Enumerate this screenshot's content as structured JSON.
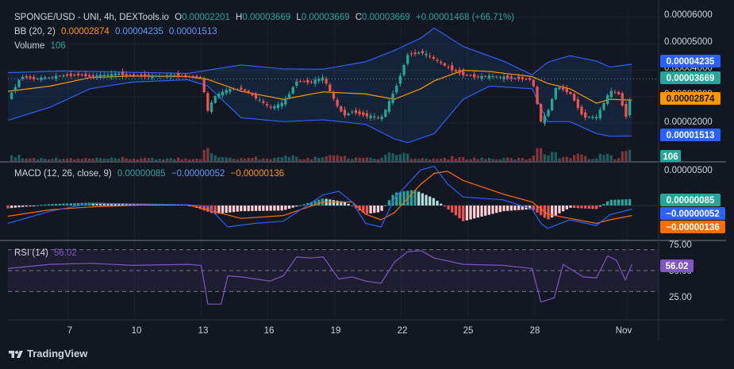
{
  "header": {
    "symbol": "SPONGE/USD - UNI, 4h, DEXTools.io",
    "o_label": "O",
    "o_value": "0.00002201",
    "h_label": "H",
    "h_value": "0.00003669",
    "l_label": "L",
    "l_value": "0.00003669",
    "c_label": "C",
    "c_value": "0.00003669",
    "change": "+0.00001468 (+66.71%)"
  },
  "legends": {
    "bb_label": "BB (20, 2)",
    "bb_basis": "0.00002874",
    "bb_upper": "0.00004235",
    "bb_lower": "0.00001513",
    "volume_label": "Volume",
    "volume_value": "106",
    "macd_label": "MACD (12, 26, close, 9)",
    "macd_hist": "0.00000085",
    "macd_line": "−0.00000052",
    "macd_signal": "−0.00000136",
    "rsi_label": "RSI (14)",
    "rsi_value": "56.02"
  },
  "price_axis": {
    "ticks": [
      "0.00006000",
      "0.00005000",
      "0.00004000",
      "0.00003000",
      "0.00002000"
    ]
  },
  "macd_axis": {
    "ticks": [
      "0.00000500"
    ]
  },
  "rsi_axis": {
    "ticks": [
      "75.00",
      "50.00",
      "25.00"
    ]
  },
  "time_axis": {
    "ticks": [
      "7",
      "10",
      "13",
      "16",
      "19",
      "22",
      "25",
      "28",
      "Nov"
    ]
  },
  "badges": {
    "bb_upper": "0.00004235",
    "close": "0.00003669",
    "bb_basis": "0.00002874",
    "bb_lower": "0.00001513",
    "volume": "106",
    "macd_hist": "0.00000085",
    "macd_line": "−0.00000052",
    "macd_signal": "−0.00000136",
    "rsi": "56.02"
  },
  "colors": {
    "up": "#26a69a",
    "down": "#ef5350",
    "basis": "#ff9800",
    "band": "#2962ff",
    "macd": "#2962ff",
    "signal": "#ff6d00",
    "rsi": "#7e57c2",
    "bg": "#131722"
  },
  "branding": {
    "name": "TradingView"
  },
  "chart_data": [
    {
      "type": "candlestick",
      "title": "SPONGE/USD - UNI, 4h, DEXTools.io",
      "x_ticks": [
        "7",
        "10",
        "13",
        "16",
        "19",
        "22",
        "25",
        "28",
        "Nov"
      ],
      "ylim": [
        1.3e-05,
        6.15e-05
      ],
      "close_path": [
        [
          4.3,
          2.91e-05
        ],
        [
          4.9,
          3.78e-05
        ],
        [
          5.5,
          3.68e-05
        ],
        [
          6.2,
          3.72e-05
        ],
        [
          6.8,
          3.8e-05
        ],
        [
          7.4,
          3.84e-05
        ],
        [
          8.0,
          3.78e-05
        ],
        [
          8.7,
          3.8e-05
        ],
        [
          9.3,
          3.85e-05
        ],
        [
          9.9,
          3.81e-05
        ],
        [
          10.5,
          3.79e-05
        ],
        [
          11.2,
          3.77e-05
        ],
        [
          11.8,
          3.8e-05
        ],
        [
          12.4,
          3.78e-05
        ],
        [
          13.0,
          3.73e-05
        ],
        [
          13.3,
          2.45e-05
        ],
        [
          13.6,
          3e-05
        ],
        [
          14.2,
          3.25e-05
        ],
        [
          14.8,
          3.3e-05
        ],
        [
          15.4,
          3e-05
        ],
        [
          16.1,
          2.55e-05
        ],
        [
          16.7,
          2.75e-05
        ],
        [
          17.3,
          3.6e-05
        ],
        [
          17.9,
          3.55e-05
        ],
        [
          18.5,
          3.7e-05
        ],
        [
          19.2,
          2.5e-05
        ],
        [
          19.5,
          2.3e-05
        ],
        [
          19.8,
          2.45e-05
        ],
        [
          20.4,
          2.3e-05
        ],
        [
          21.1,
          2.15e-05
        ],
        [
          21.7,
          3.2e-05
        ],
        [
          22.3,
          4.6e-05
        ],
        [
          22.9,
          4.7e-05
        ],
        [
          23.5,
          4.4e-05
        ],
        [
          24.1,
          4.1e-05
        ],
        [
          24.8,
          3.85e-05
        ],
        [
          25.4,
          3.75e-05
        ],
        [
          26.0,
          3.76e-05
        ],
        [
          26.6,
          3.72e-05
        ],
        [
          27.3,
          3.7e-05
        ],
        [
          27.9,
          3.65e-05
        ],
        [
          28.3,
          2.05e-05
        ],
        [
          28.6,
          2.4e-05
        ],
        [
          29.0,
          3.4e-05
        ],
        [
          29.6,
          3.15e-05
        ],
        [
          30.2,
          2.25e-05
        ],
        [
          30.8,
          2.2e-05
        ],
        [
          31.4,
          3.2e-05
        ],
        [
          31.8,
          3.1e-05
        ],
        [
          32.2,
          2.1e-05
        ],
        [
          32.4,
          3.67e-05
        ]
      ],
      "bb_upper": [
        [
          4.3,
          3.91e-05
        ],
        [
          6.8,
          3.97e-05
        ],
        [
          9.3,
          3.93e-05
        ],
        [
          12.4,
          3.88e-05
        ],
        [
          13.3,
          4e-05
        ],
        [
          14.8,
          4.2e-05
        ],
        [
          16.7,
          4.05e-05
        ],
        [
          18.5,
          4.04e-05
        ],
        [
          20.4,
          4.32e-05
        ],
        [
          21.7,
          4.75e-05
        ],
        [
          22.9,
          5.22e-05
        ],
        [
          23.5,
          5.6e-05
        ],
        [
          24.8,
          4.9e-05
        ],
        [
          26.6,
          4.35e-05
        ],
        [
          27.9,
          3.83e-05
        ],
        [
          28.6,
          4.3e-05
        ],
        [
          29.6,
          4.55e-05
        ],
        [
          30.8,
          4.35e-05
        ],
        [
          31.4,
          4.12e-05
        ],
        [
          32.4,
          4.23e-05
        ]
      ],
      "bb_basis": [
        [
          4.3,
          3.2e-05
        ],
        [
          6.2,
          3.4e-05
        ],
        [
          8.0,
          3.72e-05
        ],
        [
          9.9,
          3.78e-05
        ],
        [
          12.4,
          3.76e-05
        ],
        [
          13.3,
          3.65e-05
        ],
        [
          14.8,
          3.2e-05
        ],
        [
          16.7,
          2.9e-05
        ],
        [
          18.5,
          3.18e-05
        ],
        [
          20.4,
          3.1e-05
        ],
        [
          21.7,
          2.9e-05
        ],
        [
          22.9,
          3.3e-05
        ],
        [
          23.5,
          3.6e-05
        ],
        [
          24.8,
          4e-05
        ],
        [
          26.0,
          3.95e-05
        ],
        [
          27.9,
          3.76e-05
        ],
        [
          28.6,
          3.5e-05
        ],
        [
          29.6,
          3.3e-05
        ],
        [
          30.8,
          2.75e-05
        ],
        [
          31.4,
          2.9e-05
        ],
        [
          32.4,
          2.87e-05
        ]
      ],
      "bb_lower": [
        [
          4.3,
          2.1e-05
        ],
        [
          6.2,
          2.6e-05
        ],
        [
          8.0,
          3.3e-05
        ],
        [
          9.9,
          3.55e-05
        ],
        [
          12.4,
          3.64e-05
        ],
        [
          13.3,
          3.4e-05
        ],
        [
          14.8,
          2.2e-05
        ],
        [
          16.7,
          2.05e-05
        ],
        [
          18.5,
          2.12e-05
        ],
        [
          20.4,
          1.95e-05
        ],
        [
          21.7,
          1.4e-05
        ],
        [
          22.3,
          1.25e-05
        ],
        [
          23.5,
          1.6e-05
        ],
        [
          24.8,
          2.9e-05
        ],
        [
          26.0,
          3.4e-05
        ],
        [
          27.9,
          3.3e-05
        ],
        [
          28.6,
          2.05e-05
        ],
        [
          29.6,
          2.05e-05
        ],
        [
          30.8,
          1.6e-05
        ],
        [
          31.4,
          1.5e-05
        ],
        [
          32.4,
          1.51e-05
        ]
      ]
    },
    {
      "type": "bar",
      "title": "Volume",
      "current_value": 106
    },
    {
      "type": "line",
      "title": "MACD (12, 26, close, 9)",
      "series": [
        {
          "name": "MACD",
          "points": [
            [
              4.3,
              -2.5e-06
            ],
            [
              6.2,
              -8e-07
            ],
            [
              8.0,
              3e-07
            ],
            [
              10.5,
              2e-07
            ],
            [
              12.4,
              1e-07
            ],
            [
              13.3,
              -1e-07
            ],
            [
              14.2,
              -3e-06
            ],
            [
              15.4,
              -2.5e-06
            ],
            [
              16.7,
              -2.2e-06
            ],
            [
              18.5,
              1.5e-06
            ],
            [
              19.2,
              2e-06
            ],
            [
              19.8,
              5e-07
            ],
            [
              20.4,
              -2.5e-06
            ],
            [
              21.1,
              -3e-06
            ],
            [
              21.7,
              1e-06
            ],
            [
              22.9,
              5e-06
            ],
            [
              23.5,
              5.5e-06
            ],
            [
              24.1,
              3e-06
            ],
            [
              24.8,
              1.2e-06
            ],
            [
              26.6,
              8e-07
            ],
            [
              27.9,
              -5e-07
            ],
            [
              28.3,
              -2.5e-06
            ],
            [
              28.6,
              -3.2e-06
            ],
            [
              29.6,
              -2e-06
            ],
            [
              30.8,
              -2.8e-06
            ],
            [
              31.4,
              -1.3e-06
            ],
            [
              32.4,
              -5e-07
            ]
          ]
        },
        {
          "name": "Signal",
          "points": [
            [
              4.3,
              -1.5e-06
            ],
            [
              6.2,
              -6e-07
            ],
            [
              8.0,
              -2e-07
            ],
            [
              10.5,
              1e-07
            ],
            [
              12.4,
              1e-07
            ],
            [
              14.8,
              -1.8e-06
            ],
            [
              16.7,
              -1.4e-06
            ],
            [
              18.5,
              5e-07
            ],
            [
              19.8,
              5e-07
            ],
            [
              20.4,
              -1.2e-06
            ],
            [
              21.1,
              -2e-06
            ],
            [
              21.7,
              -1e-06
            ],
            [
              22.9,
              3e-06
            ],
            [
              23.5,
              4.5e-06
            ],
            [
              24.1,
              4.8e-06
            ],
            [
              24.8,
              3.5e-06
            ],
            [
              26.6,
              1.6e-06
            ],
            [
              27.9,
              5e-07
            ],
            [
              28.6,
              -1.2e-06
            ],
            [
              29.6,
              -1.8e-06
            ],
            [
              30.8,
              -2.5e-06
            ],
            [
              31.4,
              -2e-06
            ],
            [
              32.4,
              -1.4e-06
            ]
          ]
        }
      ],
      "histogram_points": [
        [
          4.3,
          -4e-07
        ],
        [
          6.2,
          2e-07
        ],
        [
          8.0,
          4e-07
        ],
        [
          12.4,
          1e-07
        ],
        [
          13.6,
          -1.2e-06
        ],
        [
          14.8,
          -8e-07
        ],
        [
          16.7,
          -7e-07
        ],
        [
          18.5,
          1e-06
        ],
        [
          19.5,
          5e-07
        ],
        [
          20.4,
          -1.2e-06
        ],
        [
          21.1,
          -9e-07
        ],
        [
          21.7,
          1.8e-06
        ],
        [
          22.6,
          2.2e-06
        ],
        [
          23.5,
          1e-06
        ],
        [
          24.8,
          -2.2e-06
        ],
        [
          26.6,
          -8e-07
        ],
        [
          27.9,
          -5e-07
        ],
        [
          28.6,
          -2e-06
        ],
        [
          29.6,
          -3e-07
        ],
        [
          30.8,
          -5e-07
        ],
        [
          31.4,
          8e-07
        ],
        [
          32.4,
          9e-07
        ]
      ]
    },
    {
      "type": "line",
      "title": "RSI (14)",
      "ylim": [
        0,
        100
      ],
      "reference_lines": [
        70,
        50,
        30
      ],
      "points": [
        [
          4.3,
          52
        ],
        [
          6.2,
          56
        ],
        [
          8.0,
          57
        ],
        [
          9.9,
          55
        ],
        [
          12.4,
          56
        ],
        [
          13.0,
          55
        ],
        [
          13.3,
          18
        ],
        [
          13.9,
          18
        ],
        [
          14.2,
          45
        ],
        [
          14.8,
          44
        ],
        [
          16.1,
          40
        ],
        [
          16.7,
          45
        ],
        [
          17.3,
          63
        ],
        [
          17.9,
          62
        ],
        [
          18.5,
          63
        ],
        [
          19.2,
          42
        ],
        [
          19.8,
          44
        ],
        [
          20.4,
          40
        ],
        [
          21.1,
          38
        ],
        [
          21.7,
          58
        ],
        [
          22.3,
          68
        ],
        [
          22.9,
          69
        ],
        [
          23.5,
          62
        ],
        [
          24.8,
          56
        ],
        [
          26.6,
          55
        ],
        [
          27.9,
          52
        ],
        [
          28.3,
          20
        ],
        [
          28.9,
          24
        ],
        [
          29.3,
          56
        ],
        [
          29.6,
          52
        ],
        [
          30.2,
          44
        ],
        [
          30.8,
          43
        ],
        [
          31.3,
          64
        ],
        [
          31.7,
          60
        ],
        [
          32.1,
          41
        ],
        [
          32.4,
          56
        ]
      ]
    }
  ]
}
